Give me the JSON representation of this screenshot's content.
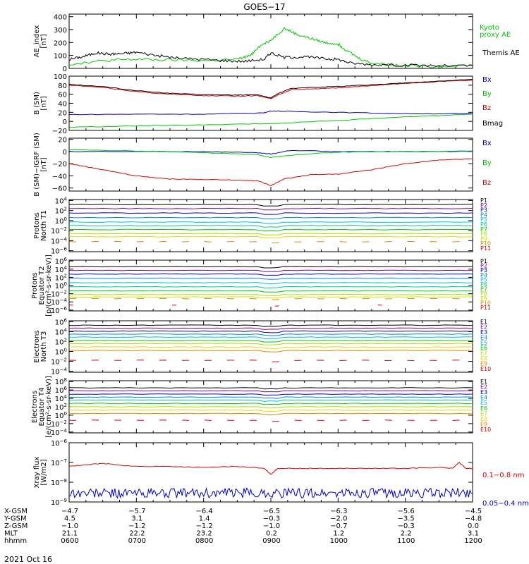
{
  "title": "GOES−17",
  "date": "2021 Oct 16",
  "colors": {
    "black": "#000000",
    "red": "#dd0000",
    "green": "#00cc00",
    "blue": "#0000cc",
    "cyan": "#00bbdd",
    "yellow": "#dddd00",
    "orange": "#dd8800",
    "purple": "#880088"
  },
  "x_axis": {
    "row_labels": [
      "X-GSM",
      "Y-GSM",
      "Z-GSM",
      "MLT",
      "hhmm"
    ],
    "ticks": [
      {
        "hhmm": "0600",
        "X-GSM": "−4.7",
        "Y-GSM": "4.5",
        "Z-GSM": "−1.0",
        "MLT": "21.1"
      },
      {
        "hhmm": "0700",
        "X-GSM": "−5.7",
        "Y-GSM": "3.1",
        "Z-GSM": "−1.2",
        "MLT": "22.2"
      },
      {
        "hhmm": "0800",
        "X-GSM": "−6.4",
        "Y-GSM": "1.4",
        "Z-GSM": "−1.2",
        "MLT": "23.2"
      },
      {
        "hhmm": "0900",
        "X-GSM": "−6.5",
        "Y-GSM": "−0.3",
        "Z-GSM": "−1.0",
        "MLT": "0.2"
      },
      {
        "hhmm": "1000",
        "X-GSM": "−6.3",
        "Y-GSM": "−2.0",
        "Z-GSM": "−0.7",
        "MLT": "1.2"
      },
      {
        "hhmm": "1100",
        "X-GSM": "−5.6",
        "Y-GSM": "−3.5",
        "Z-GSM": "−0.3",
        "MLT": "2.2"
      },
      {
        "hhmm": "1200",
        "X-GSM": "−4.5",
        "Y-GSM": "−4.8",
        "Z-GSM": "0.0",
        "MLT": "3.1"
      }
    ]
  },
  "chart_data": [
    {
      "type": "line",
      "ylabel": [
        "AE_index",
        "[nT]"
      ],
      "scale": "linear",
      "ylim": [
        0,
        420
      ],
      "yticks": [
        0,
        100,
        200,
        300,
        400
      ],
      "legend": [
        {
          "text": "Kyoto",
          "color": "#00cc00"
        },
        {
          "text": "proxy AE",
          "color": "#00cc00"
        },
        {
          "text": "Themis AE",
          "color": "#000000"
        }
      ],
      "series": [
        {
          "name": "Kyoto proxy AE",
          "color": "#00cc00",
          "x": [
            6.0,
            6.3,
            6.7,
            7.0,
            7.5,
            8.0,
            8.5,
            8.7,
            8.8,
            9.0,
            9.2,
            9.4,
            9.6,
            9.8,
            10.0,
            10.1,
            10.3,
            10.5,
            10.8,
            11.0,
            11.5,
            12.0
          ],
          "y": [
            30,
            50,
            65,
            70,
            65,
            60,
            70,
            100,
            160,
            220,
            310,
            260,
            230,
            200,
            190,
            150,
            80,
            40,
            30,
            20,
            15,
            25
          ]
        },
        {
          "name": "Themis AE",
          "color": "#000000",
          "x": [
            6.0,
            6.2,
            6.4,
            6.6,
            6.8,
            7.0,
            7.3,
            7.6,
            8.0,
            8.3,
            8.6,
            8.9,
            9.0,
            9.2,
            9.5,
            9.8,
            10.0,
            10.2,
            10.5,
            11.0,
            11.5,
            12.0
          ],
          "y": [
            70,
            90,
            120,
            110,
            115,
            125,
            100,
            80,
            70,
            60,
            55,
            70,
            120,
            85,
            90,
            75,
            70,
            40,
            30,
            25,
            20,
            20
          ]
        }
      ]
    },
    {
      "type": "line",
      "ylabel": [
        "B (SM)",
        "[nT]"
      ],
      "scale": "linear",
      "ylim": [
        -20,
        100
      ],
      "yticks": [
        -20,
        0,
        20,
        40,
        60,
        80,
        100
      ],
      "legend": [
        {
          "text": "Bx",
          "color": "#0000cc"
        },
        {
          "text": "By",
          "color": "#00cc00"
        },
        {
          "text": "Bz",
          "color": "#dd0000"
        },
        {
          "text": "Bmag",
          "color": "#000000"
        }
      ],
      "series": [
        {
          "name": "Bx",
          "color": "#0000cc",
          "x": [
            6.0,
            7.0,
            8.0,
            8.9,
            9.0,
            9.3,
            10.0,
            11.0,
            12.0
          ],
          "y": [
            15,
            16,
            16,
            19,
            23,
            22,
            20,
            17,
            17
          ]
        },
        {
          "name": "By",
          "color": "#00cc00",
          "x": [
            6.0,
            7.0,
            8.0,
            9.0,
            10.0,
            11.0,
            12.0
          ],
          "y": [
            -13,
            -10,
            -8,
            -5,
            2,
            10,
            16
          ]
        },
        {
          "name": "Bz",
          "color": "#dd0000",
          "x": [
            6.0,
            6.5,
            7.0,
            7.5,
            8.0,
            8.5,
            8.8,
            9.0,
            9.1,
            9.3,
            9.6,
            10.0,
            10.5,
            11.0,
            11.5,
            12.0
          ],
          "y": [
            80,
            75,
            66,
            60,
            57,
            56,
            57,
            50,
            58,
            70,
            72,
            74,
            79,
            84,
            88,
            91
          ]
        },
        {
          "name": "Bmag",
          "color": "#000000",
          "x": [
            6.0,
            6.5,
            7.0,
            7.5,
            8.0,
            8.5,
            8.8,
            9.0,
            9.1,
            9.3,
            9.6,
            10.0,
            10.5,
            11.0,
            11.5,
            12.0
          ],
          "y": [
            82,
            77,
            68,
            62,
            59,
            58,
            59,
            52,
            61,
            73,
            75,
            77,
            81,
            85,
            89,
            93
          ]
        }
      ]
    },
    {
      "type": "line",
      "ylabel": [
        "B (SM)−IGRF (SM)",
        "[nT]"
      ],
      "scale": "linear",
      "ylim": [
        -65,
        22
      ],
      "yticks": [
        -60,
        -40,
        -20,
        0,
        20
      ],
      "legend": [
        {
          "text": "Bx",
          "color": "#0000cc"
        },
        {
          "text": "By",
          "color": "#00cc00"
        },
        {
          "text": "Bz",
          "color": "#dd0000"
        }
      ],
      "series": [
        {
          "name": "Bx",
          "color": "#0000cc",
          "x": [
            6.0,
            7.0,
            8.0,
            8.8,
            9.0,
            9.3,
            10.0,
            11.0,
            12.0
          ],
          "y": [
            0,
            0,
            0,
            -2,
            -4,
            2,
            0,
            0,
            0
          ]
        },
        {
          "name": "By",
          "color": "#00cc00",
          "x": [
            6.0,
            7.0,
            8.0,
            8.8,
            9.0,
            9.3,
            10.0,
            11.0,
            12.0
          ],
          "y": [
            3,
            1,
            -2,
            -5,
            -10,
            -6,
            -1,
            0,
            1
          ]
        },
        {
          "name": "Bz",
          "color": "#dd0000",
          "x": [
            6.0,
            6.5,
            7.0,
            7.5,
            8.0,
            8.5,
            8.8,
            9.0,
            9.2,
            9.6,
            10.0,
            10.5,
            11.0,
            11.5,
            12.0
          ],
          "y": [
            -20,
            -30,
            -40,
            -45,
            -46,
            -47,
            -48,
            -56,
            -45,
            -38,
            -37,
            -30,
            -20,
            -14,
            -12
          ]
        }
      ]
    },
    {
      "type": "line",
      "ylabel": [
        "Protons",
        "North T1"
      ],
      "scale": "log",
      "ylim": [
        -6.2,
        4.2
      ],
      "yticks": [
        4,
        2,
        0,
        -2,
        -4,
        -6
      ],
      "legend": [
        {
          "text": "P1",
          "color": "#000000"
        },
        {
          "text": "P2",
          "color": "#880088"
        },
        {
          "text": "P3",
          "color": "#0000cc"
        },
        {
          "text": "P4",
          "color": "#0088dd"
        },
        {
          "text": "P5",
          "color": "#00bbdd"
        },
        {
          "text": "P6",
          "color": "#00cc88"
        },
        {
          "text": "P7",
          "color": "#00cc00"
        },
        {
          "text": "P8",
          "color": "#aadd00"
        },
        {
          "text": "P9",
          "color": "#dddd00"
        },
        {
          "text": "P10",
          "color": "#dd8800"
        },
        {
          "text": "P11",
          "color": "#dd0000"
        }
      ],
      "series": [
        {
          "name": "P1",
          "color": "#000000",
          "level": 3.2
        },
        {
          "name": "P2",
          "color": "#880088",
          "level": 2.4
        },
        {
          "name": "P3",
          "color": "#0000cc",
          "level": 1.5
        },
        {
          "name": "P4",
          "color": "#0088dd",
          "level": 0.6
        },
        {
          "name": "P5",
          "color": "#00bbdd",
          "level": -0.3
        },
        {
          "name": "P6",
          "color": "#00cc88",
          "level": -1.0
        },
        {
          "name": "P7",
          "color": "#00cc00",
          "level": -1.8
        },
        {
          "name": "P8",
          "color": "#aadd00",
          "level": -2.6
        },
        {
          "name": "P9",
          "color": "#dddd00",
          "level": -3.2
        },
        {
          "name": "P10",
          "color": "#dd8800",
          "level": -4.2,
          "dashed": true
        },
        {
          "name": "P11",
          "color": "#dd0000",
          "level": -7,
          "hidden": true
        }
      ]
    },
    {
      "type": "line",
      "ylabel": [
        "Protons",
        "Equator T2",
        "[p/(cm²-s-sr-keV)]"
      ],
      "scale": "log",
      "ylim": [
        -6.2,
        6.2
      ],
      "yticks": [
        6,
        4,
        2,
        0,
        -2,
        -4,
        -6
      ],
      "legend": [
        {
          "text": "P1",
          "color": "#000000"
        },
        {
          "text": "P2",
          "color": "#880088"
        },
        {
          "text": "P3",
          "color": "#0000cc"
        },
        {
          "text": "P4",
          "color": "#0088dd"
        },
        {
          "text": "P5",
          "color": "#00bbdd"
        },
        {
          "text": "P6",
          "color": "#00cc88"
        },
        {
          "text": "P7",
          "color": "#00cc00"
        },
        {
          "text": "P8",
          "color": "#aadd00"
        },
        {
          "text": "P9",
          "color": "#dddd00"
        },
        {
          "text": "P10",
          "color": "#dd8800"
        },
        {
          "text": "P11",
          "color": "#dd0000"
        }
      ],
      "series": [
        {
          "name": "P1",
          "color": "#000000",
          "level": 4.6
        },
        {
          "name": "P2",
          "color": "#880088",
          "level": 3.7
        },
        {
          "name": "P3",
          "color": "#0000cc",
          "level": 2.8
        },
        {
          "name": "P4",
          "color": "#0088dd",
          "level": 1.8
        },
        {
          "name": "P5",
          "color": "#00bbdd",
          "level": 0.7
        },
        {
          "name": "P6",
          "color": "#00cc88",
          "level": -0.3
        },
        {
          "name": "P7",
          "color": "#00cc00",
          "level": -1.3
        },
        {
          "name": "P8",
          "color": "#aadd00",
          "level": -2.2
        },
        {
          "name": "P9",
          "color": "#dddd00",
          "level": -2.8
        },
        {
          "name": "P10",
          "color": "#dd8800",
          "level": -3.2,
          "dashed": true
        },
        {
          "name": "P11",
          "color": "#dd0000",
          "level": -4.8,
          "dashed": true,
          "sparse": true
        }
      ]
    },
    {
      "type": "line",
      "ylabel": [
        "Electrons",
        "North T3"
      ],
      "scale": "log",
      "ylim": [
        -4.2,
        6.2
      ],
      "yticks": [
        6,
        4,
        2,
        0,
        -2,
        -4
      ],
      "legend": [
        {
          "text": "E1",
          "color": "#000000"
        },
        {
          "text": "E2",
          "color": "#880088"
        },
        {
          "text": "E3",
          "color": "#0000cc"
        },
        {
          "text": "E4",
          "color": "#0088dd"
        },
        {
          "text": "E5",
          "color": "#00bbdd"
        },
        {
          "text": "E6",
          "color": "#00cc00"
        },
        {
          "text": "E7",
          "color": "#aadd00"
        },
        {
          "text": "E8",
          "color": "#dddd00"
        },
        {
          "text": "E9",
          "color": "#dd8800"
        },
        {
          "text": "E10",
          "color": "#dd0000"
        }
      ],
      "series": [
        {
          "name": "E1",
          "color": "#000000",
          "level": 5.3
        },
        {
          "name": "E2",
          "color": "#880088",
          "level": 4.7
        },
        {
          "name": "E3",
          "color": "#0000cc",
          "level": 4.1
        },
        {
          "name": "E4",
          "color": "#0088dd",
          "level": 3.5
        },
        {
          "name": "E5",
          "color": "#00bbdd",
          "level": 2.9
        },
        {
          "name": "E6",
          "color": "#00cc00",
          "level": 2.2
        },
        {
          "name": "E7",
          "color": "#aadd00",
          "level": 1.6
        },
        {
          "name": "E8",
          "color": "#dddd00",
          "level": 0.9
        },
        {
          "name": "E9",
          "color": "#dd8800",
          "level": 0.2
        },
        {
          "name": "E10",
          "color": "#dd0000",
          "level": -1.8,
          "dashed": true
        }
      ]
    },
    {
      "type": "line",
      "ylabel": [
        "Electrons",
        "Equator T4",
        "[e/(cm²-s-sr-keV)]"
      ],
      "scale": "log",
      "ylim": [
        -4.2,
        8.2
      ],
      "yticks": [
        8,
        6,
        4,
        2,
        0,
        -2,
        -4
      ],
      "legend": [
        {
          "text": "E1",
          "color": "#000000"
        },
        {
          "text": "E2",
          "color": "#880088"
        },
        {
          "text": "E3",
          "color": "#0000cc"
        },
        {
          "text": "E4",
          "color": "#0088dd"
        },
        {
          "text": "E5",
          "color": "#00bbdd"
        },
        {
          "text": "E6",
          "color": "#00cc00"
        },
        {
          "text": "E7",
          "color": "#aadd00"
        },
        {
          "text": "E8",
          "color": "#dddd00"
        },
        {
          "text": "E9",
          "color": "#dd8800"
        },
        {
          "text": "E10",
          "color": "#dd0000"
        }
      ],
      "series": [
        {
          "name": "E1",
          "color": "#000000",
          "level": 6.5
        },
        {
          "name": "E2",
          "color": "#880088",
          "level": 5.8
        },
        {
          "name": "E3",
          "color": "#0000cc",
          "level": 5.0
        },
        {
          "name": "E4",
          "color": "#0088dd",
          "level": 4.3
        },
        {
          "name": "E5",
          "color": "#00bbdd",
          "level": 3.6
        },
        {
          "name": "E6",
          "color": "#00cc00",
          "level": 2.8
        },
        {
          "name": "E7",
          "color": "#aadd00",
          "level": 2.0
        },
        {
          "name": "E8",
          "color": "#dddd00",
          "level": 1.2
        },
        {
          "name": "E9",
          "color": "#dd8800",
          "level": 0.4
        },
        {
          "name": "E10",
          "color": "#dd0000",
          "level": -1.2,
          "dashed": true
        }
      ]
    },
    {
      "type": "line",
      "ylabel": [
        "Xray flux",
        "[W/m2]"
      ],
      "scale": "log",
      "ylim": [
        -9,
        -6
      ],
      "yticks": [
        -6,
        -7,
        -8,
        -9
      ],
      "legend": [
        {
          "text": "0.1−0.8 nm",
          "color": "#dd0000"
        },
        {
          "text": "0.05−0.4 nm",
          "color": "#0000cc"
        }
      ],
      "series": [
        {
          "name": "0.1−0.8 nm",
          "color": "#dd0000",
          "x": [
            6.0,
            6.3,
            6.5,
            7.0,
            7.5,
            8.0,
            8.5,
            8.9,
            9.0,
            9.1,
            9.5,
            10.0,
            10.5,
            11.0,
            11.5,
            11.7,
            11.8,
            11.9,
            12.0
          ],
          "y": [
            -7.2,
            -7.1,
            -7.05,
            -7.2,
            -7.2,
            -7.25,
            -7.2,
            -7.3,
            -7.6,
            -7.3,
            -7.3,
            -7.3,
            -7.3,
            -7.3,
            -7.25,
            -7.3,
            -7.0,
            -7.3,
            -7.3
          ]
        },
        {
          "name": "0.05−0.4 nm",
          "color": "#0000cc",
          "noisy": true,
          "base": -8.55,
          "amp": 0.25
        }
      ]
    }
  ]
}
